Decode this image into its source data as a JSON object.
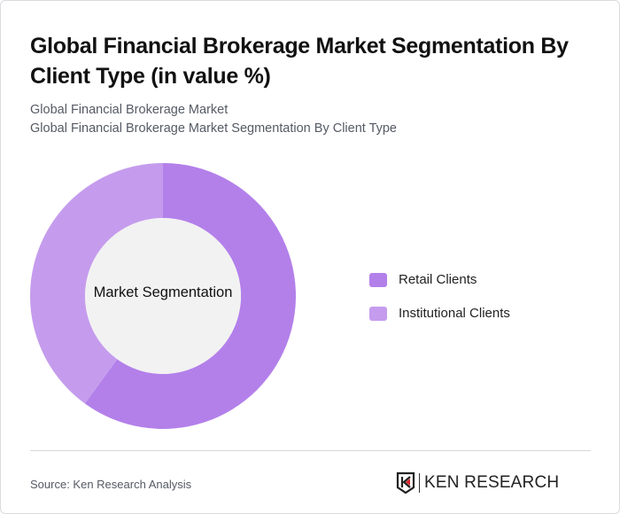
{
  "header": {
    "title": "Global Financial Brokerage Market Segmentation By Client Type (in value %)",
    "subtitle_line1": "Global Financial Brokerage Market",
    "subtitle_line2": "Global Financial Brokerage Market Segmentation By Client Type"
  },
  "chart_data": {
    "type": "pie",
    "variant": "donut",
    "title": "Global Financial Brokerage Market Segmentation By Client Type (in value %)",
    "center_label": "Market Segmentation",
    "categories": [
      "Retail Clients",
      "Institutional Clients"
    ],
    "values": [
      60,
      40
    ],
    "colors": [
      "#b380ea",
      "#c59ced"
    ],
    "start_angle": "12 o'clock, clockwise",
    "legend_position": "right"
  },
  "legend": {
    "items": [
      {
        "label": "Retail Clients",
        "color": "#b380ea"
      },
      {
        "label": "Institutional Clients",
        "color": "#c59ced"
      }
    ]
  },
  "footer": {
    "source": "Source: Ken Research Analysis",
    "logo_text": "KEN RESEARCH"
  }
}
